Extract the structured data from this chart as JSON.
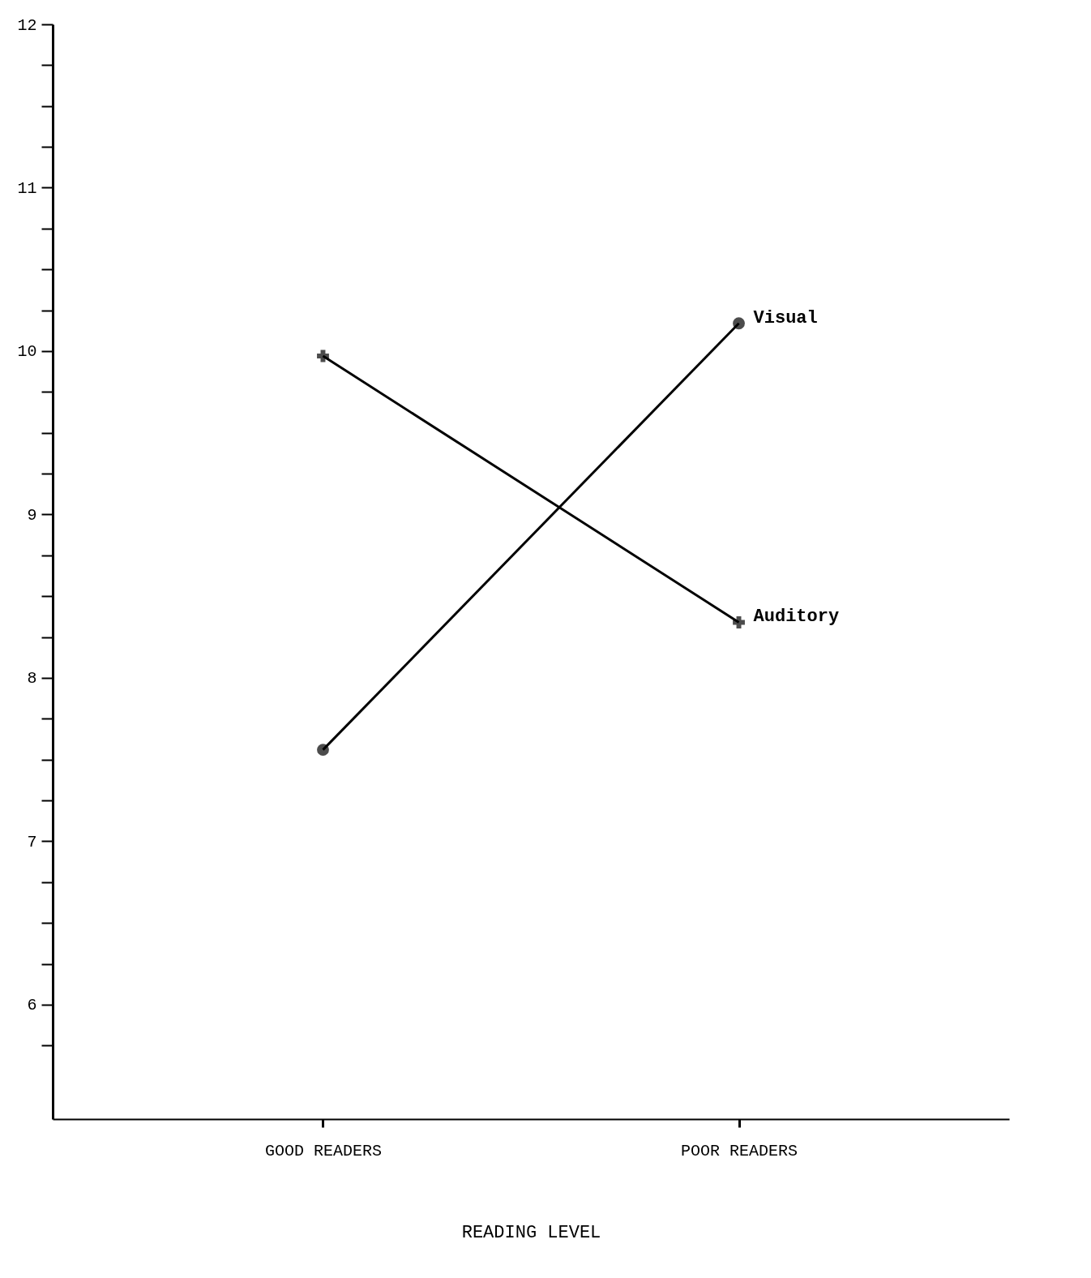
{
  "chart_data": {
    "type": "line",
    "xlabel": "READING LEVEL",
    "categories": [
      "GOOD READERS",
      "POOR READERS"
    ],
    "series": [
      {
        "name": "Visual",
        "color": "#000000",
        "marker": "circle",
        "values": [
          7.56,
          10.17
        ]
      },
      {
        "name": "Auditory",
        "color": "#000000",
        "marker": "cross",
        "values": [
          9.97,
          8.34
        ]
      }
    ],
    "ylim": [
      5.3,
      12
    ],
    "yticks": [
      {
        "value": 5.75,
        "label": null
      },
      6,
      {
        "value": 6.25,
        "label": null
      },
      {
        "value": 6.5,
        "label": null
      },
      {
        "value": 6.75,
        "label": null
      },
      7,
      {
        "value": 7.25,
        "label": null
      },
      {
        "value": 7.5,
        "label": null
      },
      {
        "value": 7.75,
        "label": null
      },
      8,
      {
        "value": 8.25,
        "label": null
      },
      {
        "value": 8.5,
        "label": null
      },
      {
        "value": 8.75,
        "label": null
      },
      9,
      {
        "value": 9.25,
        "label": null
      },
      {
        "value": 9.5,
        "label": null
      },
      {
        "value": 9.75,
        "label": null
      },
      10,
      {
        "value": 10.25,
        "label": null
      },
      {
        "value": 10.5,
        "label": null
      },
      {
        "value": 10.75,
        "label": null
      },
      11,
      {
        "value": 11.25,
        "label": null
      },
      {
        "value": 11.5,
        "label": null
      },
      {
        "value": 11.75,
        "label": null
      },
      12
    ],
    "grid": false,
    "legend": false,
    "line_style": "solid"
  }
}
